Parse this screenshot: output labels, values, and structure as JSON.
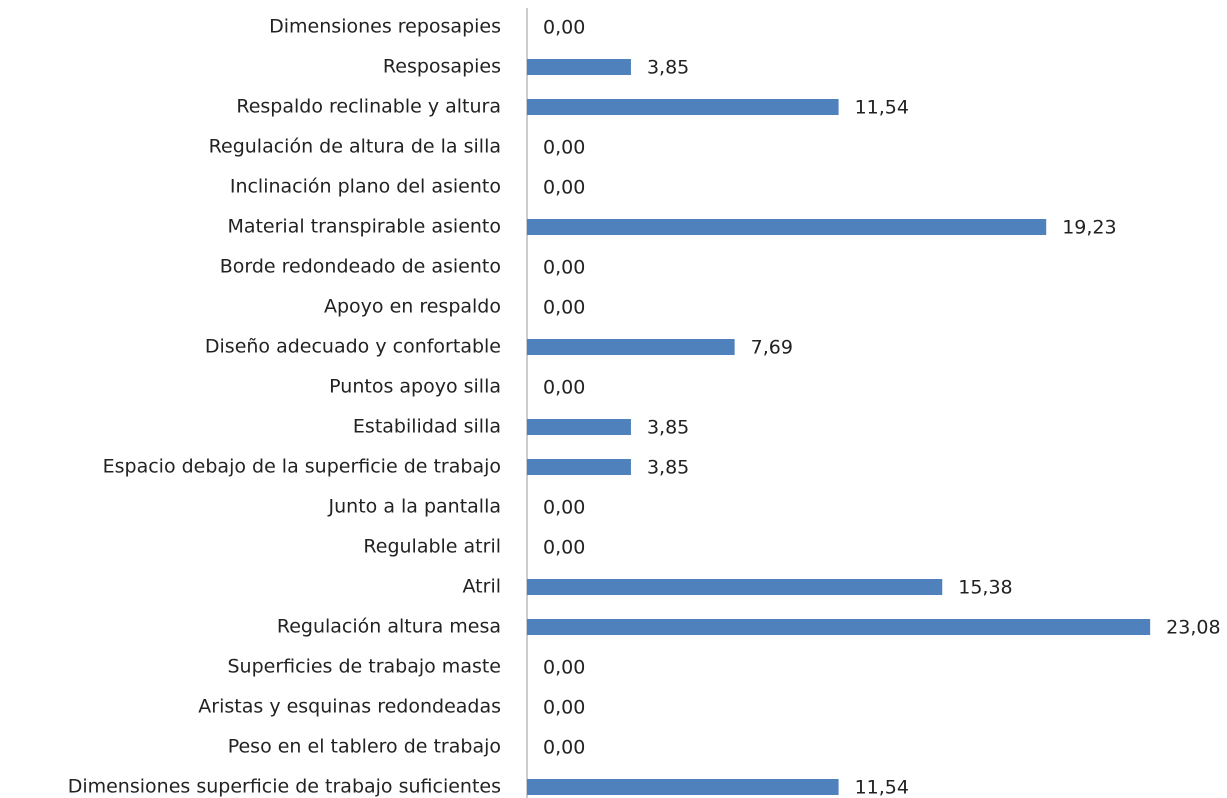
{
  "chart_data": {
    "type": "hbar",
    "categories": [
      "Dimensiones reposapies",
      "Resposapies",
      "Respaldo reclinable y altura",
      "Regulación de altura de la silla",
      "Inclinación plano del asiento",
      "Material transpirable asiento",
      "Borde redondeado de asiento",
      "Apoyo en respaldo",
      "Diseño adecuado y confortable",
      "Puntos apoyo silla",
      "Estabilidad silla",
      "Espacio debajo de la superficie de trabajo",
      "Junto a la pantalla",
      "Regulable atril",
      "Atril",
      "Regulación altura mesa",
      "Superficies de trabajo maste",
      "Aristas y esquinas redondeadas",
      "Peso en el tablero de trabajo",
      "Dimensiones superficie de trabajo suficientes"
    ],
    "values": [
      0,
      3.85,
      11.54,
      0,
      0,
      19.23,
      0,
      0,
      7.69,
      0,
      3.85,
      3.85,
      0,
      0,
      15.38,
      23.08,
      0,
      0,
      0,
      11.54
    ],
    "value_labels": [
      "0,00",
      "3,85",
      "11,54",
      "0,00",
      "0,00",
      "19,23",
      "0,00",
      "0,00",
      "7,69",
      "0,00",
      "3,85",
      "3,85",
      "0,00",
      "0,00",
      "15,38",
      "23,08",
      "0,00",
      "0,00",
      "0,00",
      "11,54"
    ],
    "color": "#4f81bd",
    "xlim": [
      0,
      24
    ]
  }
}
